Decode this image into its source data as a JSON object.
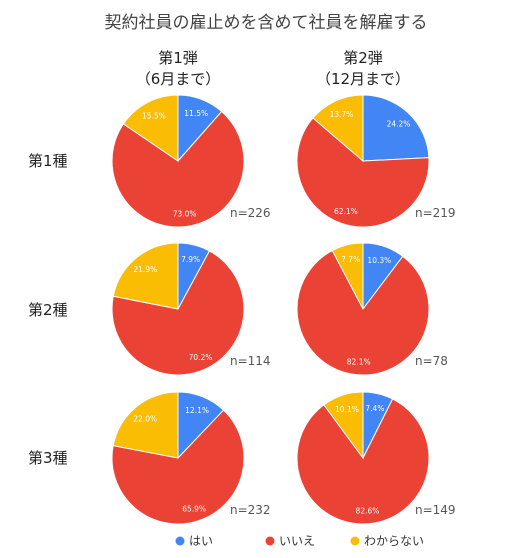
{
  "chart_data": {
    "type": "pie",
    "title": "契約社員の雇止めを含めて社員を解雇する",
    "columns": [
      {
        "line1": "第1弾",
        "line2": "（6月まで）"
      },
      {
        "line1": "第2弾",
        "line2": "（12月まで）"
      }
    ],
    "rows": [
      "第1種",
      "第2種",
      "第3種"
    ],
    "legend": {
      "placement": "bottom",
      "entries": [
        {
          "label": "はい",
          "color": "#4285f4"
        },
        {
          "label": "いいえ",
          "color": "#ea4335"
        },
        {
          "label": "わからない",
          "color": "#fbbc04"
        }
      ]
    },
    "pies": [
      {
        "row": 0,
        "col": 0,
        "n_label": "n=226",
        "slices": [
          {
            "category": "はい",
            "value": 11.5,
            "label": "11.5%"
          },
          {
            "category": "いいえ",
            "value": 73.0,
            "label": "73.0%"
          },
          {
            "category": "わからない",
            "value": 15.5,
            "label": "15.5%"
          }
        ]
      },
      {
        "row": 0,
        "col": 1,
        "n_label": "n=219",
        "slices": [
          {
            "category": "はい",
            "value": 24.2,
            "label": "24.2%"
          },
          {
            "category": "いいえ",
            "value": 62.1,
            "label": "62.1%"
          },
          {
            "category": "わからない",
            "value": 13.7,
            "label": "13.7%"
          }
        ]
      },
      {
        "row": 1,
        "col": 0,
        "n_label": "n=114",
        "slices": [
          {
            "category": "はい",
            "value": 7.9,
            "label": "7.9%"
          },
          {
            "category": "いいえ",
            "value": 70.2,
            "label": "70.2%"
          },
          {
            "category": "わからない",
            "value": 21.9,
            "label": "21.9%"
          }
        ]
      },
      {
        "row": 1,
        "col": 1,
        "n_label": "n=78",
        "slices": [
          {
            "category": "はい",
            "value": 10.3,
            "label": "10.3%"
          },
          {
            "category": "いいえ",
            "value": 82.1,
            "label": "82.1%"
          },
          {
            "category": "わからない",
            "value": 7.7,
            "label": "7.7%"
          }
        ]
      },
      {
        "row": 2,
        "col": 0,
        "n_label": "n=232",
        "slices": [
          {
            "category": "はい",
            "value": 12.1,
            "label": "12.1%"
          },
          {
            "category": "いいえ",
            "value": 65.9,
            "label": "65.9%"
          },
          {
            "category": "わからない",
            "value": 22.0,
            "label": "22.0%"
          }
        ]
      },
      {
        "row": 2,
        "col": 1,
        "n_label": "n=149",
        "slices": [
          {
            "category": "はい",
            "value": 7.4,
            "label": "7.4%"
          },
          {
            "category": "いいえ",
            "value": 82.6,
            "label": "82.6%"
          },
          {
            "category": "わからない",
            "value": 10.1,
            "label": "10.1%"
          }
        ]
      }
    ]
  }
}
